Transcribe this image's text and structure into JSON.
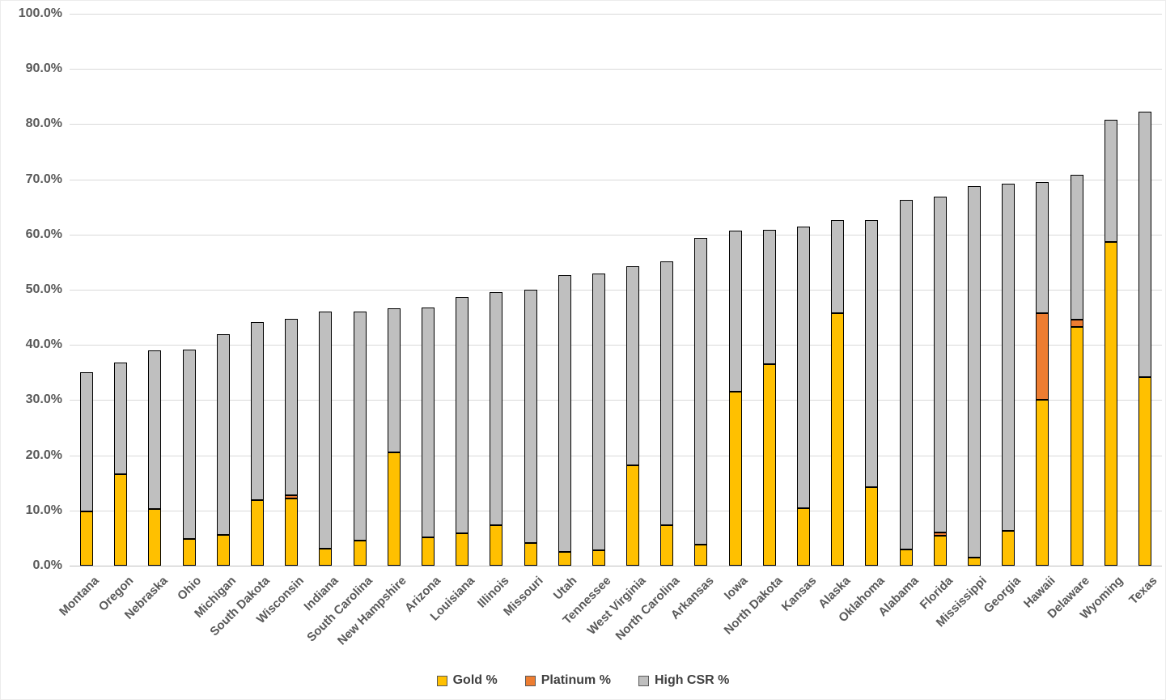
{
  "chart_data": {
    "type": "bar",
    "variant": "stacked-vertical",
    "title": "",
    "xlabel": "",
    "ylabel": "",
    "categories": [
      "Montana",
      "Oregon",
      "Nebraska",
      "Ohio",
      "Michigan",
      "South Dakota",
      "Wisconsin",
      "Indiana",
      "South Carolina",
      "New Hampshire",
      "Arizona",
      "Louisiana",
      "Illinois",
      "Missouri",
      "Utah",
      "Tennessee",
      "West Virginia",
      "North Carolina",
      "Arkansas",
      "Iowa",
      "North Dakota",
      "Kansas",
      "Alaska",
      "Oklahoma",
      "Alabama",
      "Florida",
      "Mississippi",
      "Georgia",
      "Hawaii",
      "Delaware",
      "Wyoming",
      "Texas"
    ],
    "series": [
      {
        "name": "Gold %",
        "color": "#FFC000",
        "values": [
          9.8,
          16.6,
          10.3,
          4.8,
          5.6,
          11.9,
          12.2,
          3.1,
          4.6,
          20.6,
          5.1,
          5.9,
          7.4,
          4.1,
          2.5,
          2.8,
          18.2,
          7.4,
          3.8,
          31.5,
          36.5,
          10.4,
          45.7,
          14.2,
          2.9,
          5.4,
          1.4,
          6.3,
          30.0,
          43.3,
          58.6,
          34.1
        ]
      },
      {
        "name": "Platinum %",
        "color": "#ED7D31",
        "values": [
          0,
          0,
          0,
          0,
          0,
          0,
          0.6,
          0,
          0,
          0,
          0,
          0,
          0,
          0,
          0,
          0,
          0,
          0,
          0,
          0,
          0,
          0,
          0,
          0,
          0,
          0.6,
          0,
          0,
          15.7,
          1.3,
          0,
          0
        ]
      },
      {
        "name": "High CSR %",
        "color": "#BFBFBF",
        "values": [
          25.3,
          20.2,
          28.7,
          34.4,
          36.3,
          32.2,
          31.9,
          42.9,
          41.4,
          26.0,
          41.7,
          42.8,
          42.1,
          45.9,
          50.1,
          50.2,
          36.0,
          47.7,
          55.6,
          29.2,
          24.3,
          51.0,
          16.9,
          48.4,
          63.4,
          60.8,
          67.4,
          62.9,
          23.8,
          26.2,
          22.2,
          48.1
        ]
      }
    ],
    "ylim": [
      0,
      100
    ],
    "ytick_step": 10,
    "ytick_labels": [
      "0.0%",
      "10.0%",
      "20.0%",
      "30.0%",
      "40.0%",
      "50.0%",
      "60.0%",
      "70.0%",
      "80.0%",
      "90.0%",
      "100.0%"
    ],
    "grid": true,
    "gridline_color": "#d9d9d9",
    "bar_border_color": "#000000",
    "legend_position": "bottom",
    "legend": [
      "Gold %",
      "Platinum %",
      "High CSR %"
    ]
  }
}
